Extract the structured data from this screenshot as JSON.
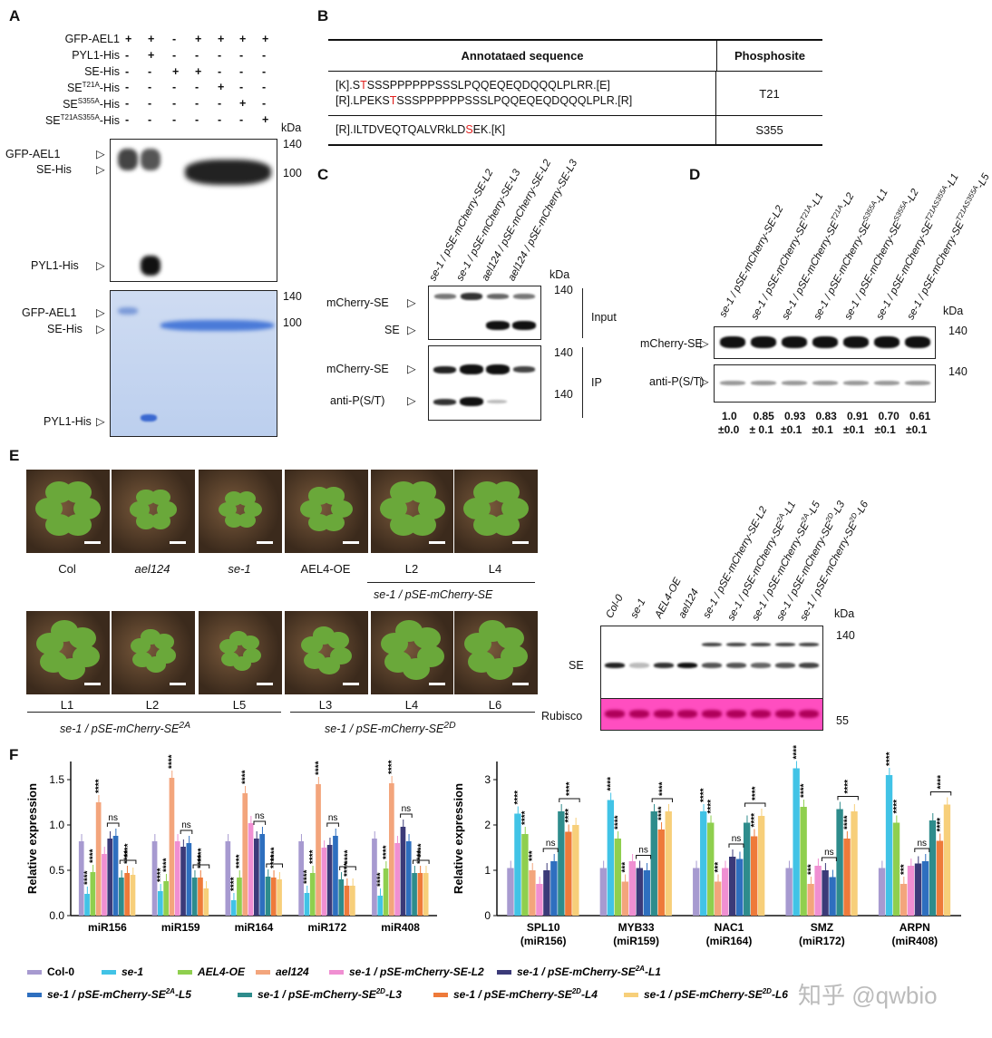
{
  "panelA": {
    "label": "A",
    "rows": [
      {
        "name": "GFP-AEL1",
        "sup": "",
        "suffix": "",
        "marks": [
          "+",
          "+",
          "-",
          "+",
          "+",
          "+",
          "+"
        ]
      },
      {
        "name": "PYL1-His",
        "sup": "",
        "suffix": "",
        "marks": [
          "-",
          "+",
          "-",
          "-",
          "-",
          "-",
          "-"
        ]
      },
      {
        "name": "SE-His",
        "sup": "",
        "suffix": "",
        "marks": [
          "-",
          "-",
          "+",
          "+",
          "-",
          "-",
          "-"
        ]
      },
      {
        "name": "SE",
        "sup": "T21A",
        "suffix": "-His",
        "marks": [
          "-",
          "-",
          "-",
          "-",
          "+",
          "-",
          "-"
        ]
      },
      {
        "name": "SE",
        "sup": "S355A",
        "suffix": "-His",
        "marks": [
          "-",
          "-",
          "-",
          "-",
          "-",
          "+",
          "-"
        ]
      },
      {
        "name": "SE",
        "sup": "T21AS355A",
        "suffix": "-His",
        "marks": [
          "-",
          "-",
          "-",
          "-",
          "-",
          "-",
          "+"
        ]
      }
    ],
    "kda": "kDa",
    "blot_left": [
      "GFP-AEL1",
      "SE-His",
      "PYL1-His"
    ],
    "blot_right": [
      "140",
      "100"
    ],
    "gel_left": [
      "GFP-AEL1",
      "SE-His",
      "PYL1-His"
    ],
    "gel_right": [
      "140",
      "100"
    ]
  },
  "panelB": {
    "label": "B",
    "header_seq": "Annotataed sequence",
    "header_site": "Phosphosite",
    "rows": [
      {
        "lines": [
          {
            "pre": "[K].S",
            "red": "T",
            "post": "SSSPPPPPPSSSLPQQEQEQDQQQLPLRR.[E]"
          },
          {
            "pre": "[R].LPEKS",
            "red": "T",
            "post": "SSSPPPPPPSSSLPQQEQEQDQQQLPLR.[R]"
          }
        ],
        "site": "T21"
      },
      {
        "lines": [
          {
            "pre": "[R].ILTDVEQTQALVRkLD",
            "red": "S",
            "post": "EK.[K]"
          }
        ],
        "site": "S355"
      }
    ]
  },
  "panelC": {
    "label": "C",
    "lanes": [
      "se-1 / pSE-mCherry-SE-L2",
      "se-1 / pSE-mCherry-SE-L3",
      "ael124 / pSE-mCherry-SE-L2",
      "ael124 / pSE-mCherry-SE-L3"
    ],
    "kda": "kDa",
    "input_bands": [
      "mCherry-SE",
      "SE"
    ],
    "ip_bands": [
      "mCherry-SE",
      "anti-P(S/T)"
    ],
    "input_label": "Input",
    "ip_label": "IP",
    "mw": [
      "140",
      "140",
      "140"
    ]
  },
  "panelD": {
    "label": "D",
    "lanes": [
      "se-1 / pSE-mCherry-SE-L2",
      "se-1 / pSE-mCherry-SE",
      "se-1 / pSE-mCherry-SE",
      "se-1 / pSE-mCherry-SE",
      "se-1 / pSE-mCherry-SE",
      "se-1 / pSE-mCherry-SE",
      "se-1 / pSE-mCherry-SE"
    ],
    "lane_sups": [
      "",
      "T21A",
      "T21A",
      "S355A",
      "S355A",
      "T21AS355A",
      "T21AS355A"
    ],
    "lane_suffix": [
      "",
      "-L1",
      "-L2",
      "-L1",
      "-L2",
      "-L1",
      "-L5"
    ],
    "kda": "kDa",
    "bands": [
      "mCherry-SE",
      "anti-P(S/T)"
    ],
    "mw": [
      "140",
      "140"
    ],
    "quant": [
      {
        "v": "1.0",
        "e": "±0.0"
      },
      {
        "v": "0.85",
        "e": "± 0.1"
      },
      {
        "v": "0.93",
        "e": "±0.1"
      },
      {
        "v": "0.83",
        "e": "±0.1"
      },
      {
        "v": "0.91",
        "e": "±0.1"
      },
      {
        "v": "0.70",
        "e": "±0.1"
      },
      {
        "v": "0.61",
        "e": "±0.1"
      }
    ]
  },
  "panelE": {
    "label": "E",
    "top_labels": [
      "Col",
      "ael124",
      "se-1",
      "AEL4-OE",
      "L2",
      "L4"
    ],
    "top_italic": [
      false,
      true,
      true,
      false,
      false,
      false
    ],
    "top_group": "se-1 / pSE-mCherry-SE",
    "bottom_labels": [
      "L1",
      "L2",
      "L5",
      "L3",
      "L4",
      "L6"
    ],
    "bottom_group1": "se-1 / pSE-mCherry-SE",
    "bottom_group1_sup": "2A",
    "bottom_group2": "se-1 / pSE-mCherry-SE",
    "bottom_group2_sup": "2D",
    "wb_lanes": [
      "Col-0",
      "se-1",
      "AEL4-OE",
      "ael124",
      "se-1 / pSE-mCherry-SE-L2",
      "se-1 / pSE-mCherry-SE",
      "se-1 / pSE-mCherry-SE",
      "se-1 / pSE-mCherry-SE",
      "se-1 / pSE-mCherry-SE"
    ],
    "wb_sups": [
      "",
      "",
      "",
      "",
      "",
      "2A",
      "2A",
      "2D",
      "2D"
    ],
    "wb_suffix": [
      "",
      "",
      "",
      "",
      "",
      "-L1",
      "-L5",
      "-L3",
      "-L6"
    ],
    "kda": "kDa",
    "wb_se": "SE",
    "wb_rubisco": "Rubisco",
    "mw140": "140",
    "mw55": "55"
  },
  "panelF": {
    "label": "F",
    "watermark": "知乎 @qwbio",
    "legend": [
      {
        "name": "Col-0",
        "color": "#a79ad0"
      },
      {
        "name": "se-1",
        "color": "#41c3e6"
      },
      {
        "name": "AEL4-OE",
        "color": "#8fcf4e"
      },
      {
        "name": "ael124",
        "color": "#f3a57c"
      },
      {
        "name": "se-1 / pSE-mCherry-SE-L2",
        "color": "#f08fd2"
      },
      {
        "name": "se-1 / pSE-mCherry-SE",
        "sup": "2A",
        "suffix": "-L1",
        "color": "#3b3a78"
      },
      {
        "name": "se-1 / pSE-mCherry-SE",
        "sup": "2A",
        "suffix": "-L5",
        "color": "#2e6fbf"
      },
      {
        "name": "se-1 / pSE-mCherry-SE",
        "sup": "2D",
        "suffix": "-L3",
        "color": "#2e8c8c"
      },
      {
        "name": "se-1 / pSE-mCherry-SE",
        "sup": "2D",
        "suffix": "-L4",
        "color": "#ee7a3a"
      },
      {
        "name": "se-1 / pSE-mCherry-SE",
        "sup": "2D",
        "suffix": "-L6",
        "color": "#f7cf7a"
      }
    ]
  },
  "chart_data": [
    {
      "type": "bar",
      "ylabel": "Relative expression",
      "ylim": [
        0,
        1.7
      ],
      "yticks": [
        "0.0",
        "0.5",
        "1.0",
        "1.5"
      ],
      "categories": [
        "miR156",
        "miR159",
        "miR164",
        "miR172",
        "miR408"
      ],
      "values": [
        [
          0.82,
          0.24,
          0.48,
          1.25,
          0.68,
          0.85,
          0.88,
          0.42,
          0.47,
          0.45
        ],
        [
          0.82,
          0.27,
          0.38,
          1.52,
          0.82,
          0.76,
          0.8,
          0.42,
          0.42,
          0.3
        ],
        [
          0.82,
          0.17,
          0.42,
          1.35,
          1.02,
          0.85,
          0.9,
          0.43,
          0.42,
          0.4
        ],
        [
          0.82,
          0.25,
          0.47,
          1.45,
          0.75,
          0.78,
          0.88,
          0.4,
          0.33,
          0.33
        ],
        [
          0.85,
          0.22,
          0.52,
          1.46,
          0.8,
          0.98,
          0.82,
          0.47,
          0.47,
          0.47
        ]
      ],
      "sig": [
        [
          "",
          "****",
          "****",
          "****",
          "",
          "",
          "",
          "",
          "****",
          ""
        ],
        [
          "",
          "****",
          "****",
          "****",
          "",
          "",
          "",
          "",
          "****",
          ""
        ],
        [
          "",
          "****",
          "****",
          "****",
          "",
          "",
          "",
          "",
          "****",
          ""
        ],
        [
          "",
          "****",
          "****",
          "****",
          "",
          "",
          "",
          "",
          "****",
          ""
        ],
        [
          "",
          "****",
          "****",
          "****",
          "",
          "",
          "",
          "",
          "****",
          ""
        ]
      ],
      "ns": "ns",
      "stars": "****"
    },
    {
      "type": "bar",
      "ylabel": "Relative expression",
      "ylim": [
        0,
        3.4
      ],
      "yticks": [
        "0",
        "1",
        "2",
        "3"
      ],
      "categories": [
        "SPL10",
        "MYB33",
        "NAC1",
        "SMZ",
        "ARPN"
      ],
      "subcategories": [
        "(miR156)",
        "(miR159)",
        "(miR164)",
        "(miR172)",
        "(miR408)"
      ],
      "values": [
        [
          1.05,
          2.25,
          1.8,
          1.0,
          0.7,
          1.0,
          1.2,
          2.3,
          1.85,
          2.0
        ],
        [
          1.05,
          2.55,
          1.7,
          0.75,
          1.2,
          1.05,
          1.0,
          2.3,
          1.9,
          2.3
        ],
        [
          1.05,
          2.3,
          2.05,
          0.75,
          1.05,
          1.3,
          1.25,
          2.05,
          1.75,
          2.2
        ],
        [
          1.05,
          3.25,
          2.4,
          0.7,
          1.1,
          1.0,
          0.85,
          2.35,
          1.7,
          2.3
        ],
        [
          1.05,
          3.1,
          2.05,
          0.7,
          1.1,
          1.15,
          1.2,
          2.1,
          1.65,
          2.45
        ]
      ],
      "sig": [
        [
          "",
          "****",
          "****",
          "***",
          "",
          "",
          "",
          "",
          "****",
          ""
        ],
        [
          "",
          "****",
          "****",
          "***",
          "",
          "",
          "",
          "",
          "****",
          ""
        ],
        [
          "",
          "****",
          "****",
          "***",
          "",
          "",
          "",
          "",
          "****",
          ""
        ],
        [
          "",
          "****",
          "****",
          "***",
          "",
          "",
          "",
          "",
          "****",
          ""
        ],
        [
          "",
          "****",
          "****",
          "***",
          "",
          "",
          "",
          "",
          "****",
          ""
        ]
      ],
      "ns": "ns",
      "stars": "****"
    }
  ]
}
